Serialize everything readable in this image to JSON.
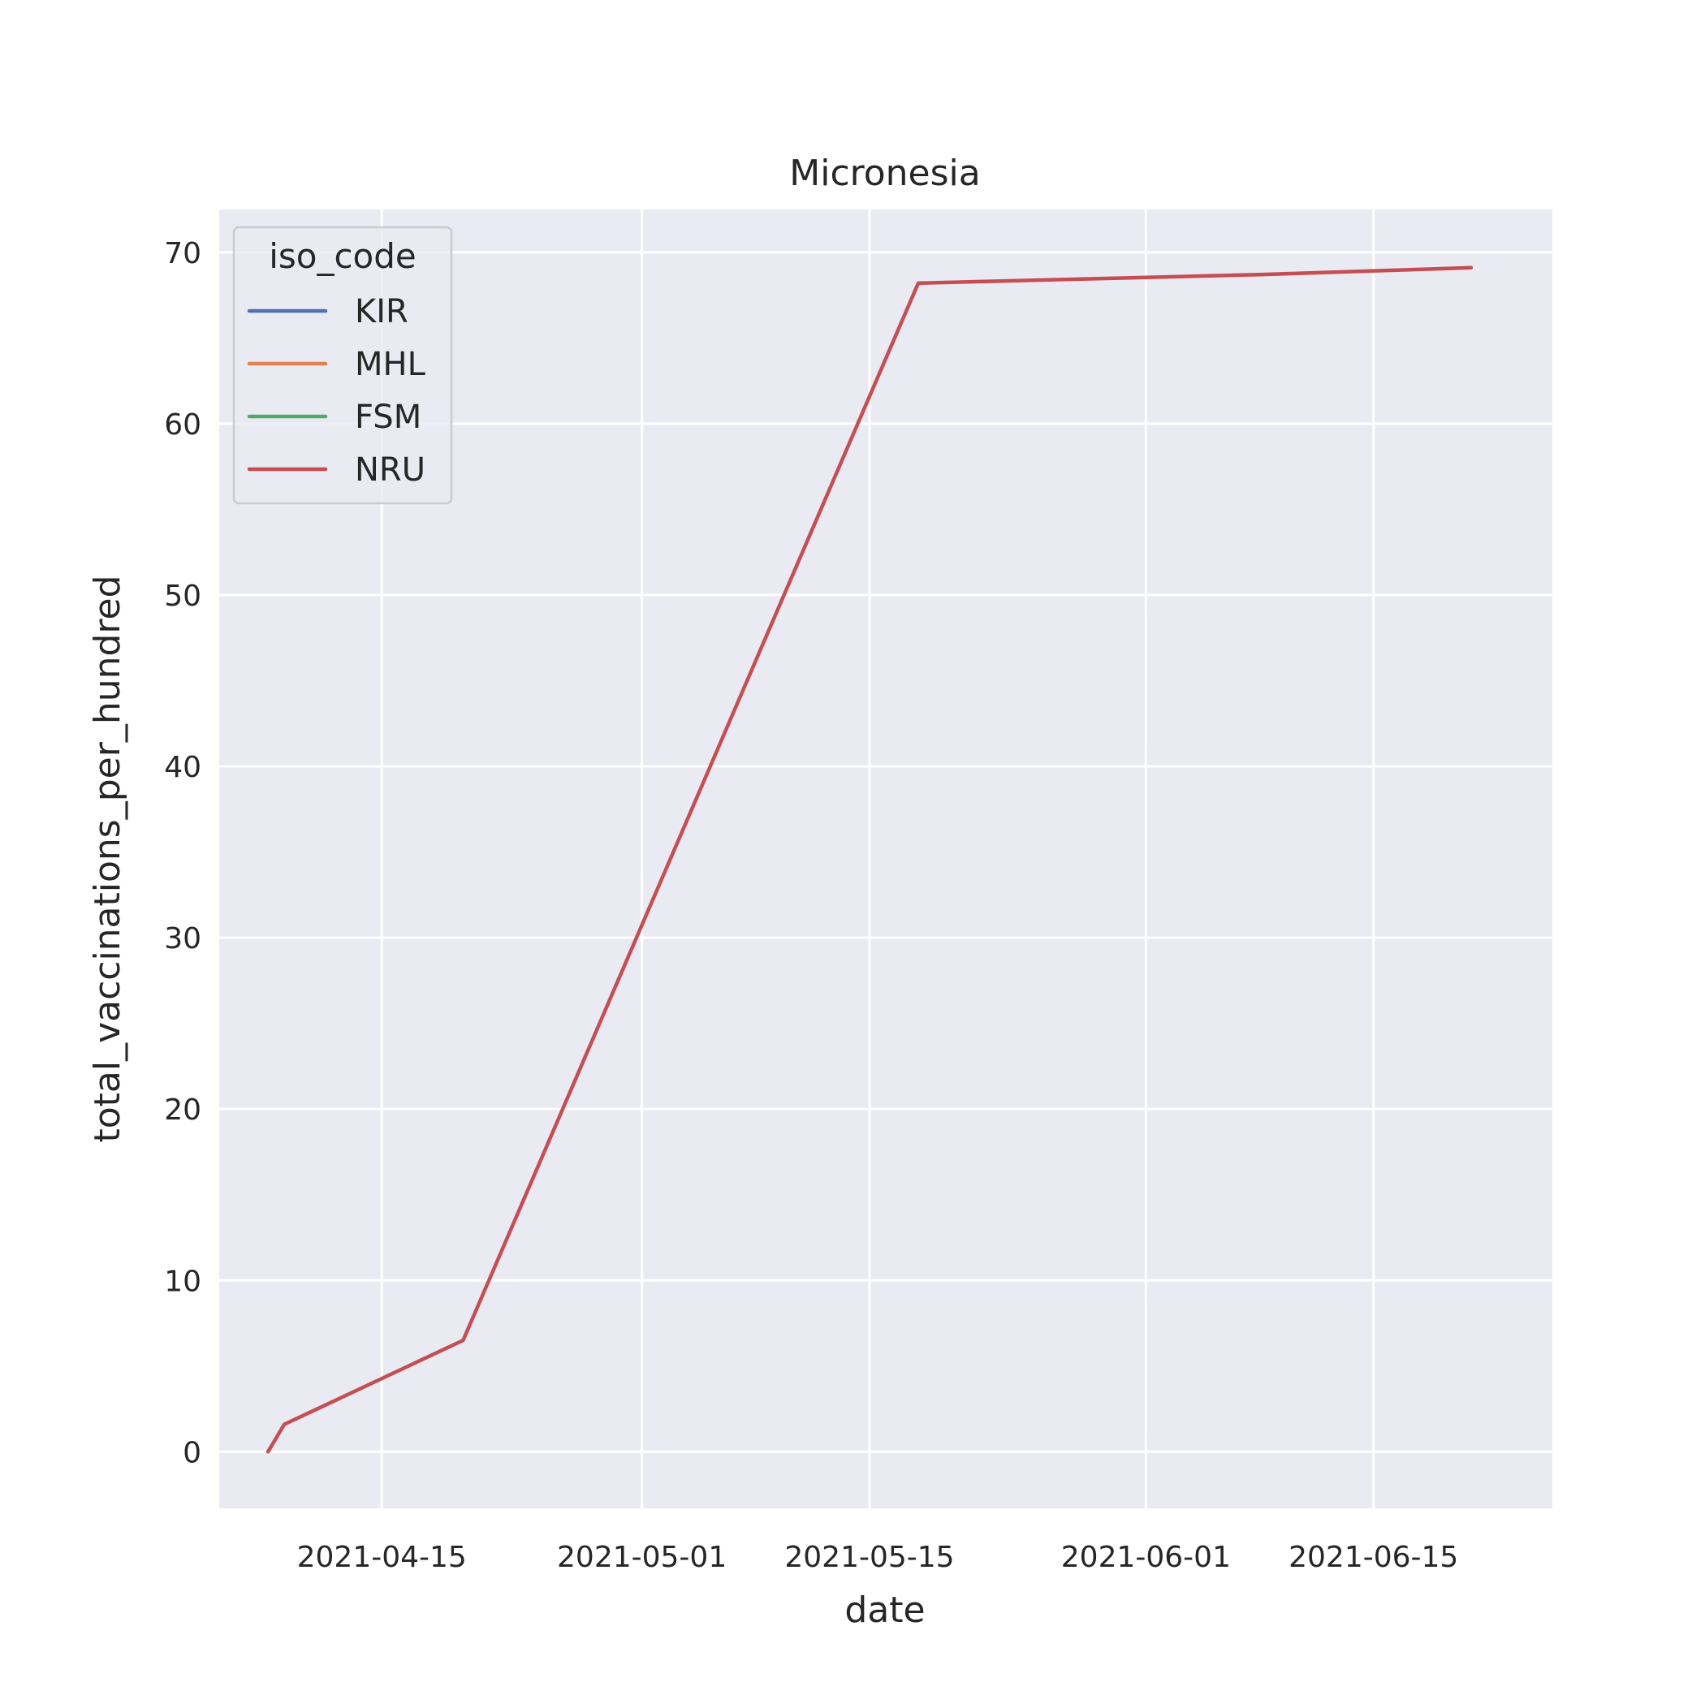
{
  "chart_data": {
    "type": "line",
    "title": "Micronesia",
    "xlabel": "date",
    "ylabel": "total_vaccinations_per_hundred",
    "x_type": "date",
    "xlim": [
      "2021-04-05",
      "2021-06-26"
    ],
    "ylim": [
      -3.3,
      72.5
    ],
    "x_ticks": [
      "2021-04-15",
      "2021-05-01",
      "2021-05-15",
      "2021-06-01",
      "2021-06-15"
    ],
    "y_ticks": [
      0,
      10,
      20,
      30,
      40,
      50,
      60,
      70
    ],
    "grid": true,
    "background_color": "#EAEAF2",
    "grid_color": "#FFFFFF",
    "legend": {
      "title": "iso_code",
      "position": "top-left",
      "entries": [
        {
          "name": "KIR",
          "color": "#4C72B0"
        },
        {
          "name": "MHL",
          "color": "#DD8452"
        },
        {
          "name": "FSM",
          "color": "#55A868"
        },
        {
          "name": "NRU",
          "color": "#C44E52"
        }
      ]
    },
    "series": [
      {
        "name": "KIR",
        "color": "#4C72B0",
        "points": []
      },
      {
        "name": "MHL",
        "color": "#DD8452",
        "points": []
      },
      {
        "name": "FSM",
        "color": "#55A868",
        "points": []
      },
      {
        "name": "NRU",
        "color": "#C44E52",
        "points": [
          {
            "x": "2021-04-08",
            "y": 0
          },
          {
            "x": "2021-04-09",
            "y": 1.6
          },
          {
            "x": "2021-04-20",
            "y": 6.5
          },
          {
            "x": "2021-05-18",
            "y": 68.2
          },
          {
            "x": "2021-06-08",
            "y": 68.7
          },
          {
            "x": "2021-06-21",
            "y": 69.1
          }
        ]
      }
    ]
  }
}
